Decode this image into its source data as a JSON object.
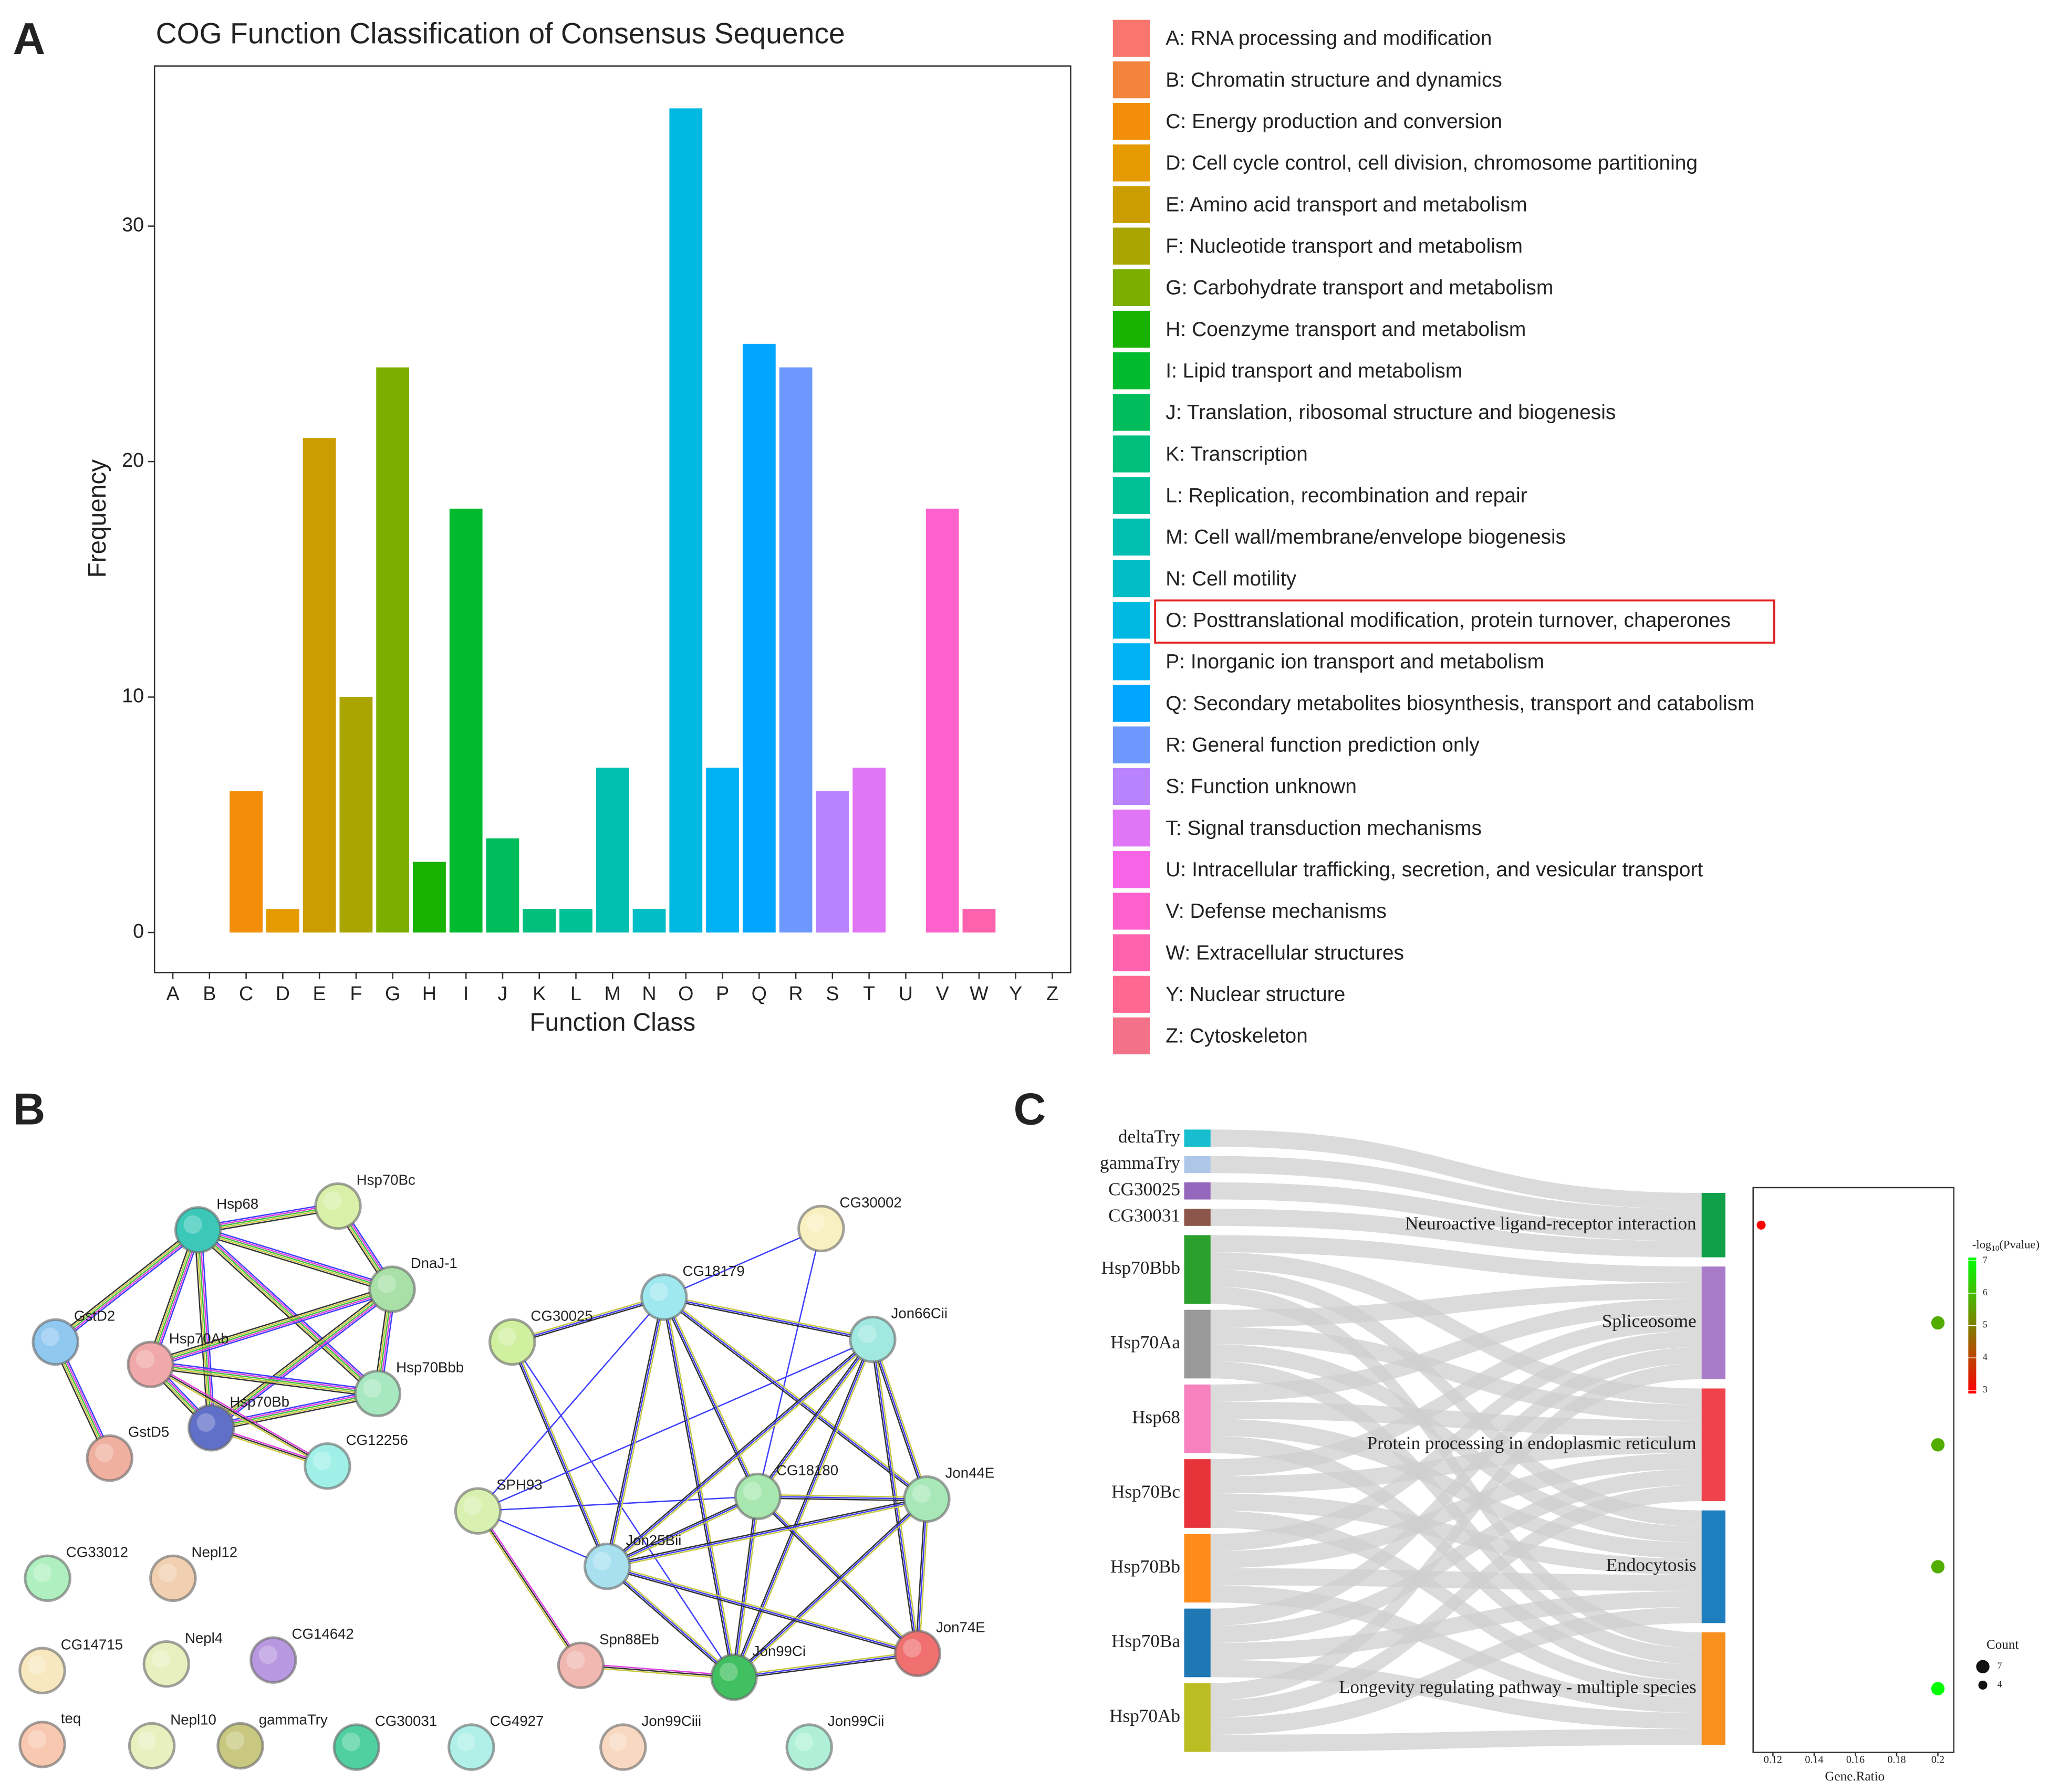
{
  "panel_labels": [
    "A",
    "B",
    "C"
  ],
  "chart_data": [
    {
      "type": "bar",
      "title": "COG Function Classification of Consensus Sequence",
      "x_label": "Function Class",
      "y_label": "Frequency",
      "categories": [
        "A",
        "B",
        "C",
        "D",
        "E",
        "F",
        "G",
        "H",
        "I",
        "J",
        "K",
        "L",
        "M",
        "N",
        "O",
        "P",
        "Q",
        "R",
        "S",
        "T",
        "U",
        "V",
        "W",
        "Y",
        "Z"
      ],
      "values": [
        0,
        0,
        6,
        1,
        21,
        10,
        24,
        3,
        18,
        4,
        1,
        1,
        7,
        1,
        35,
        7,
        25,
        24,
        6,
        7,
        0,
        18,
        1,
        0,
        0
      ],
      "colors": [
        "#F8766D",
        "#F3843D",
        "#F28E0A",
        "#E49A00",
        "#CC9D00",
        "#A9A400",
        "#7CAE00",
        "#18B200",
        "#00BB2E",
        "#00BC5A",
        "#00BF7D",
        "#00C097",
        "#00BFB0",
        "#00BDC6",
        "#00B9E3",
        "#00B1F4",
        "#00A6FF",
        "#6D98FF",
        "#B983FF",
        "#E076F6",
        "#F765E6",
        "#FF61CC",
        "#FF62AD",
        "#FF6891",
        "#F4718A"
      ],
      "ylim": [
        -1.7,
        36.8
      ],
      "yticks": [
        0,
        10,
        20,
        30
      ],
      "grid": false,
      "legend_labels": [
        "A: RNA processing and modification",
        "B: Chromatin structure and dynamics",
        "C: Energy production and conversion",
        "D: Cell cycle control, cell division, chromosome partitioning",
        "E: Amino acid transport and metabolism",
        "F: Nucleotide transport and metabolism",
        "G: Carbohydrate transport and metabolism",
        "H: Coenzyme transport and metabolism",
        "I: Lipid transport and metabolism",
        "J: Translation, ribosomal structure and biogenesis",
        "K: Transcription",
        "L: Replication, recombination and repair",
        "M: Cell wall/membrane/envelope biogenesis",
        "N: Cell motility",
        "O: Posttranslational modification, protein turnover, chaperones",
        "P: Inorganic ion transport and metabolism",
        "Q: Secondary metabolites biosynthesis, transport and catabolism",
        "R: General function prediction only",
        "S: Function unknown",
        "T: Signal transduction mechanisms",
        "U: Intracellular trafficking, secretion, and vesicular transport",
        "V: Defense mechanisms",
        "W: Extracellular structures",
        "Y: Nuclear structure",
        "Z: Cytoskeleton"
      ],
      "highlight_index": 14
    },
    {
      "type": "network",
      "nodes": [
        {
          "label": "Hsp68",
          "color": "#3cc8b8"
        },
        {
          "label": "Hsp70Bc",
          "color": "#d8f0a8"
        },
        {
          "label": "DnaJ-1",
          "color": "#a8e0a8"
        },
        {
          "label": "GstD2",
          "color": "#90c8f0"
        },
        {
          "label": "Hsp70Ab",
          "color": "#f0a8a8"
        },
        {
          "label": "Hsp70Bbb",
          "color": "#a8e8c0"
        },
        {
          "label": "Hsp70Bb",
          "color": "#6070c8"
        },
        {
          "label": "GstD5",
          "color": "#f0b0a0"
        },
        {
          "label": "CG12256",
          "color": "#a0f0e8"
        },
        {
          "label": "CG30025",
          "color": "#d0f0a0"
        },
        {
          "label": "CG18179",
          "color": "#a0e8f0"
        },
        {
          "label": "CG30002",
          "color": "#f8f0c0"
        },
        {
          "label": "Jon66Cii",
          "color": "#a0e8e0"
        },
        {
          "label": "SPH93",
          "color": "#d8f0b0"
        },
        {
          "label": "CG18180",
          "color": "#a8e8b0"
        },
        {
          "label": "Jon44E",
          "color": "#a8e8b8"
        },
        {
          "label": "Jon25Bii",
          "color": "#a8e0f0"
        },
        {
          "label": "Spn88Eb",
          "color": "#f0b8b0"
        },
        {
          "label": "Jon99Ci",
          "color": "#40c060"
        },
        {
          "label": "Jon74E",
          "color": "#f07070"
        },
        {
          "label": "CG33012",
          "color": "#b0f0c0"
        },
        {
          "label": "Nepl12",
          "color": "#f0d0b0"
        },
        {
          "label": "CG14715",
          "color": "#f8e8c0"
        },
        {
          "label": "Nepl4",
          "color": "#e8f0c0"
        },
        {
          "label": "CG14642",
          "color": "#b898e0"
        },
        {
          "label": "teq",
          "color": "#f8c8b0"
        },
        {
          "label": "Nepl10",
          "color": "#e8f0c0"
        },
        {
          "label": "gammaTry",
          "color": "#c8c880"
        },
        {
          "label": "CG30031",
          "color": "#50d0a0"
        },
        {
          "label": "CG4927",
          "color": "#b0f0e8"
        },
        {
          "label": "Jon99Ciii",
          "color": "#f8d8c0"
        },
        {
          "label": "Jon99Cii",
          "color": "#b0f0d8"
        }
      ],
      "edge_styles": [
        [
          "#3d3dff",
          "#e040e0",
          "#40c040",
          "#c8c840",
          "#333333"
        ],
        [
          "#3d3dff"
        ],
        [
          "#c8c840",
          "#3d3dff",
          "#333333"
        ],
        [
          "#e040e0",
          "#333333",
          "#c8c840"
        ]
      ],
      "edges": [
        [
          0,
          1,
          0
        ],
        [
          0,
          2,
          0
        ],
        [
          0,
          3,
          0
        ],
        [
          0,
          4,
          0
        ],
        [
          0,
          5,
          0
        ],
        [
          0,
          6,
          0
        ],
        [
          1,
          2,
          0
        ],
        [
          2,
          4,
          0
        ],
        [
          2,
          5,
          0
        ],
        [
          2,
          6,
          0
        ],
        [
          4,
          5,
          0
        ],
        [
          4,
          6,
          0
        ],
        [
          6,
          5,
          0
        ],
        [
          3,
          7,
          0
        ],
        [
          6,
          8,
          3
        ],
        [
          4,
          8,
          3
        ],
        [
          9,
          10,
          2
        ],
        [
          9,
          16,
          2
        ],
        [
          9,
          18,
          1
        ],
        [
          13,
          10,
          1
        ],
        [
          13,
          12,
          1
        ],
        [
          13,
          14,
          1
        ],
        [
          11,
          10,
          1
        ],
        [
          11,
          14,
          1
        ],
        [
          13,
          17,
          3
        ],
        [
          17,
          18,
          3
        ],
        [
          13,
          16,
          1
        ],
        [
          10,
          12,
          2
        ],
        [
          10,
          14,
          2
        ],
        [
          10,
          15,
          2
        ],
        [
          10,
          16,
          2
        ],
        [
          10,
          18,
          2
        ],
        [
          12,
          14,
          2
        ],
        [
          12,
          15,
          2
        ],
        [
          12,
          16,
          2
        ],
        [
          12,
          18,
          2
        ],
        [
          12,
          19,
          2
        ],
        [
          14,
          15,
          2
        ],
        [
          14,
          16,
          2
        ],
        [
          14,
          18,
          2
        ],
        [
          14,
          19,
          2
        ],
        [
          15,
          16,
          2
        ],
        [
          15,
          18,
          2
        ],
        [
          15,
          19,
          2
        ],
        [
          16,
          18,
          2
        ],
        [
          16,
          19,
          2
        ],
        [
          18,
          19,
          2
        ]
      ]
    },
    {
      "type": "sankey",
      "sources": [
        {
          "label": "deltaTry",
          "color": "#17becf"
        },
        {
          "label": "gammaTry",
          "color": "#aec7e8"
        },
        {
          "label": "CG30025",
          "color": "#9467bd"
        },
        {
          "label": "CG30031",
          "color": "#8c564b"
        },
        {
          "label": "Hsp70Bbb",
          "color": "#2ca02c"
        },
        {
          "label": "Hsp70Aa",
          "color": "#999999"
        },
        {
          "label": "Hsp68",
          "color": "#f781bf"
        },
        {
          "label": "Hsp70Bc",
          "color": "#e8333b"
        },
        {
          "label": "Hsp70Bb",
          "color": "#ff8c1a"
        },
        {
          "label": "Hsp70Ba",
          "color": "#1f77b4"
        },
        {
          "label": "Hsp70Ab",
          "color": "#bcbd22"
        }
      ],
      "targets": [
        {
          "label": "Neuroactive ligand-receptor interaction",
          "color": "#10a04a"
        },
        {
          "label": "Spliceosome",
          "color": "#a97cc9"
        },
        {
          "label": "Protein processing in endoplasmic reticulum",
          "color": "#f0424b"
        },
        {
          "label": "Endocytosis",
          "color": "#1f7fbe"
        },
        {
          "label": "Longevity regulating pathway - multiple species",
          "color": "#f7901e"
        }
      ],
      "links": [
        [
          0,
          0
        ],
        [
          1,
          0
        ],
        [
          2,
          0
        ],
        [
          3,
          0
        ],
        [
          4,
          1
        ],
        [
          4,
          2
        ],
        [
          4,
          3
        ],
        [
          4,
          4
        ],
        [
          5,
          1
        ],
        [
          5,
          2
        ],
        [
          5,
          3
        ],
        [
          5,
          4
        ],
        [
          6,
          1
        ],
        [
          6,
          2
        ],
        [
          6,
          3
        ],
        [
          6,
          4
        ],
        [
          7,
          1
        ],
        [
          7,
          2
        ],
        [
          7,
          3
        ],
        [
          7,
          4
        ],
        [
          8,
          1
        ],
        [
          8,
          2
        ],
        [
          8,
          3
        ],
        [
          8,
          4
        ],
        [
          9,
          1
        ],
        [
          9,
          2
        ],
        [
          9,
          3
        ],
        [
          9,
          4
        ],
        [
          10,
          1
        ],
        [
          10,
          2
        ],
        [
          10,
          3
        ],
        [
          10,
          4
        ]
      ]
    },
    {
      "type": "scatter",
      "x_label": "Gene.Ratio",
      "x": [
        0.1143,
        0.2,
        0.2,
        0.2,
        0.2
      ],
      "values": [
        3,
        5.7,
        5.7,
        5.7,
        7
      ],
      "sizes": [
        4,
        7,
        7,
        7,
        7
      ],
      "xlim": [
        0.1104,
        0.2077
      ],
      "xticks": [
        0.12,
        0.14,
        0.16,
        0.18,
        0.2
      ],
      "color_title": [
        "-log",
        "10",
        "(Pvalue)"
      ],
      "color_low": "#ff0000",
      "color_high": "#00ff00",
      "clim": [
        2.9,
        7.1
      ],
      "color_ticks": [
        3,
        4,
        5,
        6,
        7
      ],
      "size_title": "Count",
      "size_legend": [
        7,
        4
      ]
    }
  ]
}
